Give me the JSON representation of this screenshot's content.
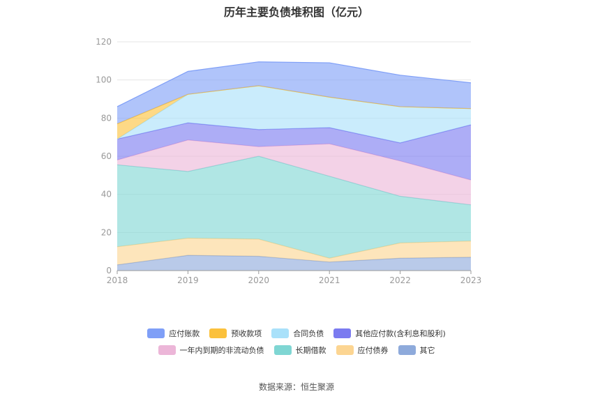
{
  "source_text": "数据来源：恒生聚源",
  "chart_data": {
    "type": "area",
    "stacked": true,
    "title": "历年主要负债堆积图（亿元）",
    "x": [
      "2018",
      "2019",
      "2020",
      "2021",
      "2022",
      "2023"
    ],
    "ylim": [
      0,
      120
    ],
    "yticks": [
      0,
      20,
      40,
      60,
      80,
      100,
      120
    ],
    "grid": true,
    "legend_position": "bottom",
    "series": [
      {
        "name": "其它",
        "color": "#8eaadb",
        "values": [
          3,
          8,
          7.5,
          4.5,
          6.5,
          7
        ]
      },
      {
        "name": "应付债券",
        "color": "#fcd592",
        "values": [
          9.5,
          9,
          9,
          2,
          8,
          8.5
        ]
      },
      {
        "name": "长期借款",
        "color": "#7fd6d3",
        "values": [
          43,
          35,
          43.5,
          43,
          24.5,
          19
        ]
      },
      {
        "name": "一年内到期的非流动负债",
        "color": "#ecb6d8",
        "values": [
          2.5,
          16.5,
          5,
          17,
          18.5,
          13
        ]
      },
      {
        "name": "其他应付款(含利息和股利)",
        "color": "#7b7bf0",
        "values": [
          11,
          9,
          9,
          8.5,
          9.5,
          29
        ]
      },
      {
        "name": "合同负债",
        "color": "#a9e1fa",
        "values": [
          0,
          15,
          23,
          16,
          19,
          8.5
        ]
      },
      {
        "name": "预收款项",
        "color": "#fbc13c",
        "values": [
          8,
          0,
          0,
          0,
          0,
          0
        ]
      },
      {
        "name": "应付账款",
        "color": "#7f9ff7",
        "values": [
          9,
          12,
          12.5,
          18,
          16.5,
          13.5
        ]
      }
    ],
    "legend_rows": [
      [
        "应付账款",
        "预收款项",
        "合同负债",
        "其他应付款(含利息和股利)"
      ],
      [
        "一年内到期的非流动负债",
        "长期借款",
        "应付债券",
        "其它"
      ]
    ]
  }
}
